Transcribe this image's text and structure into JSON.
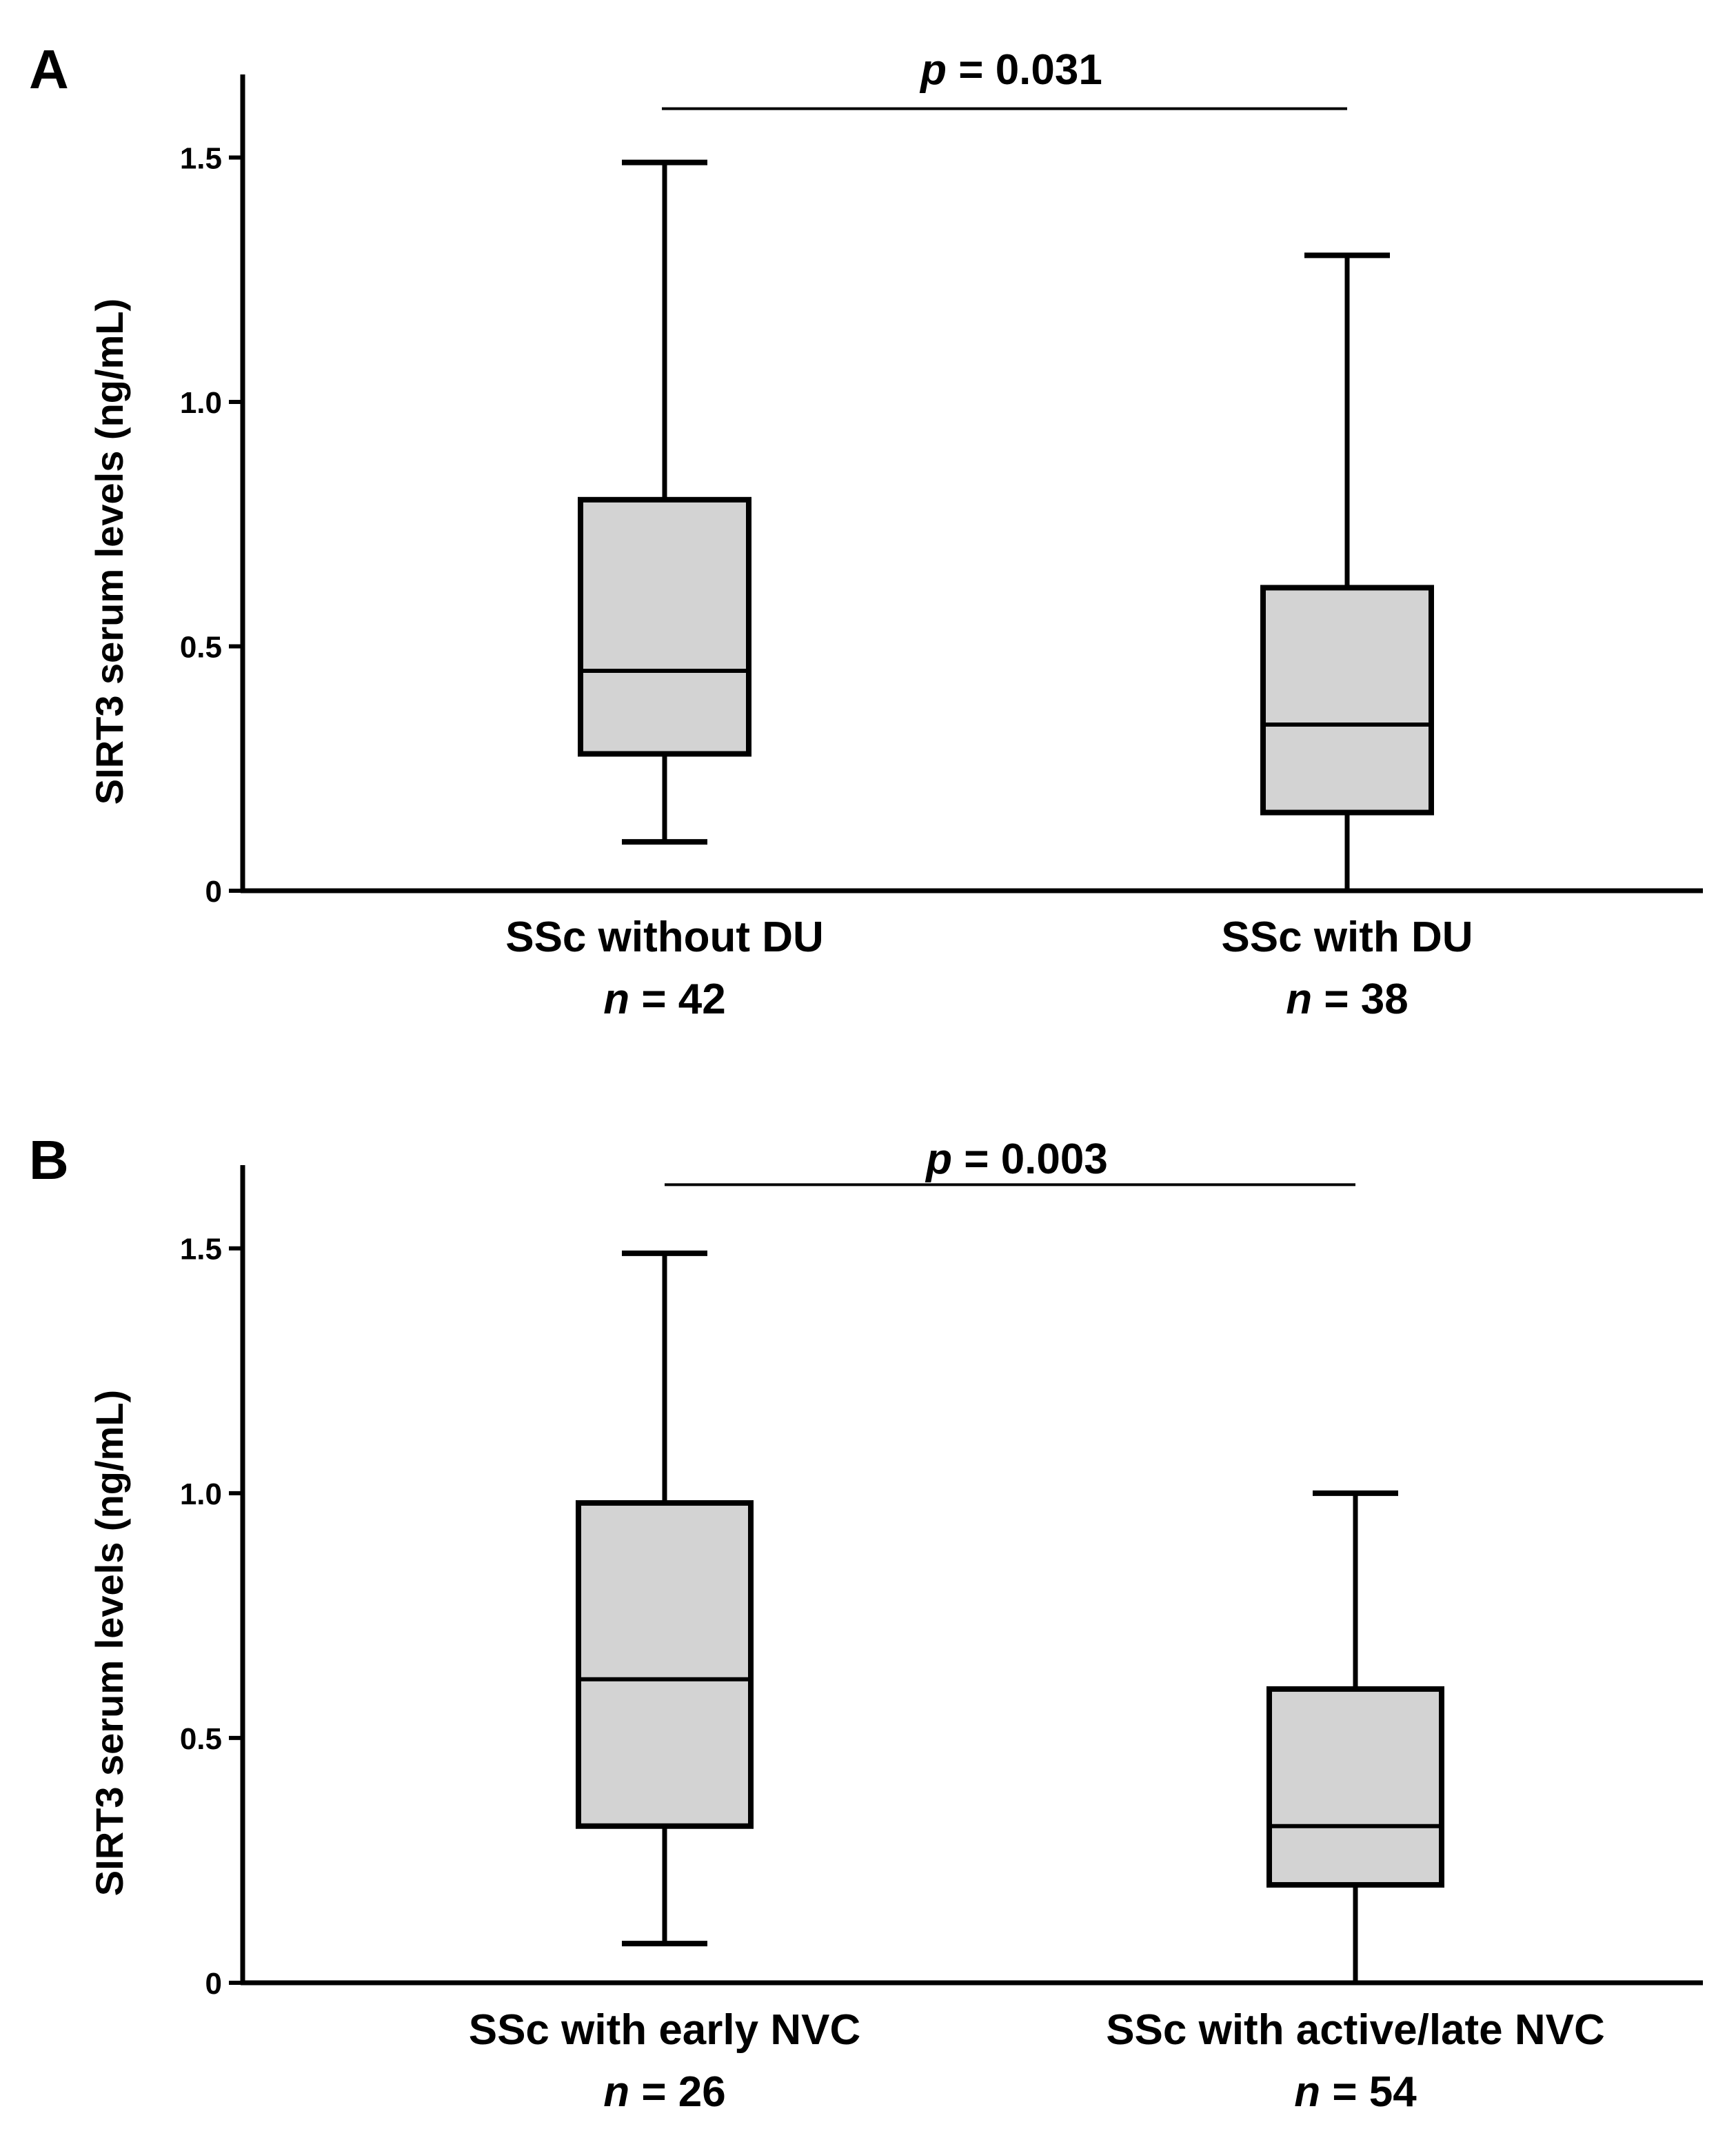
{
  "chart_data": [
    {
      "type": "box",
      "panel": "A",
      "ylabel": "SIRT3 serum levels (ng/mL)",
      "ylim": [
        0,
        1.67
      ],
      "yticks": [
        {
          "value": 0,
          "label": "0"
        },
        {
          "value": 0.5,
          "label": "0.5"
        },
        {
          "value": 1.0,
          "label": "1.0"
        },
        {
          "value": 1.5,
          "label": "1.5"
        }
      ],
      "groups": [
        {
          "label": "SSc without DU",
          "n_symbol": "n",
          "n_text": " = 42",
          "min": 0.1,
          "q1": 0.28,
          "median": 0.45,
          "q3": 0.8,
          "max": 1.49,
          "color": "#d3d3d3"
        },
        {
          "label": "SSc with DU",
          "n_symbol": "n",
          "n_text": " = 38",
          "min": 0.0,
          "q1": 0.16,
          "median": 0.34,
          "q3": 0.62,
          "max": 1.3,
          "color": "#d3d3d3"
        }
      ],
      "significance": {
        "p_symbol": "p",
        "p_text": " = 0.031",
        "y": 1.6
      }
    },
    {
      "type": "box",
      "panel": "B",
      "ylabel": "SIRT3 serum levels (ng/mL)",
      "ylim": [
        0,
        1.67
      ],
      "yticks": [
        {
          "value": 0,
          "label": "0"
        },
        {
          "value": 0.5,
          "label": "0.5"
        },
        {
          "value": 1.0,
          "label": "1.0"
        },
        {
          "value": 1.5,
          "label": "1.5"
        }
      ],
      "groups": [
        {
          "label": "SSc with early NVC",
          "n_symbol": "n",
          "n_text": " = 26",
          "min": 0.08,
          "q1": 0.32,
          "median": 0.62,
          "q3": 0.98,
          "max": 1.49,
          "color": "#d3d3d3"
        },
        {
          "label": "SSc with active/late NVC",
          "n_symbol": "n",
          "n_text": " = 54",
          "min": 0.0,
          "q1": 0.2,
          "median": 0.32,
          "q3": 0.6,
          "max": 1.0,
          "color": "#d3d3d3"
        }
      ],
      "significance": {
        "p_symbol": "p",
        "p_text": " = 0.003",
        "y": 1.63
      }
    }
  ]
}
